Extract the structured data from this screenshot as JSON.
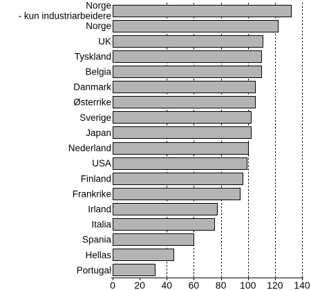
{
  "chart_data": {
    "type": "bar",
    "orientation": "horizontal",
    "title": "",
    "xlabel": "",
    "ylabel": "",
    "xlim": [
      0,
      140
    ],
    "x_ticks": [
      "0",
      "20",
      "40",
      "60",
      "80",
      "100",
      "120",
      "140"
    ],
    "grid": "vertical dashed lines at 40–140",
    "categories": [
      [
        "Norge",
        "- kun industriarbeidere"
      ],
      [
        "Norge"
      ],
      [
        "UK"
      ],
      [
        "Tyskland"
      ],
      [
        "Belgia"
      ],
      [
        "Danmark"
      ],
      [
        "Østerrike"
      ],
      [
        "Sverige"
      ],
      [
        "Japan"
      ],
      [
        "Nederland"
      ],
      [
        "USA"
      ],
      [
        "Finland"
      ],
      [
        "Frankrike"
      ],
      [
        "Irland"
      ],
      [
        "Italia"
      ],
      [
        "Spania"
      ],
      [
        "Hellas"
      ],
      [
        "Portugal"
      ]
    ],
    "values": [
      132,
      122,
      111,
      110,
      110,
      105,
      105,
      102,
      102,
      100,
      99,
      96,
      94,
      77,
      75,
      60,
      45,
      31
    ],
    "colors": {
      "bar_fill": "#b4b4b4",
      "bar_stroke": "#000000"
    }
  }
}
